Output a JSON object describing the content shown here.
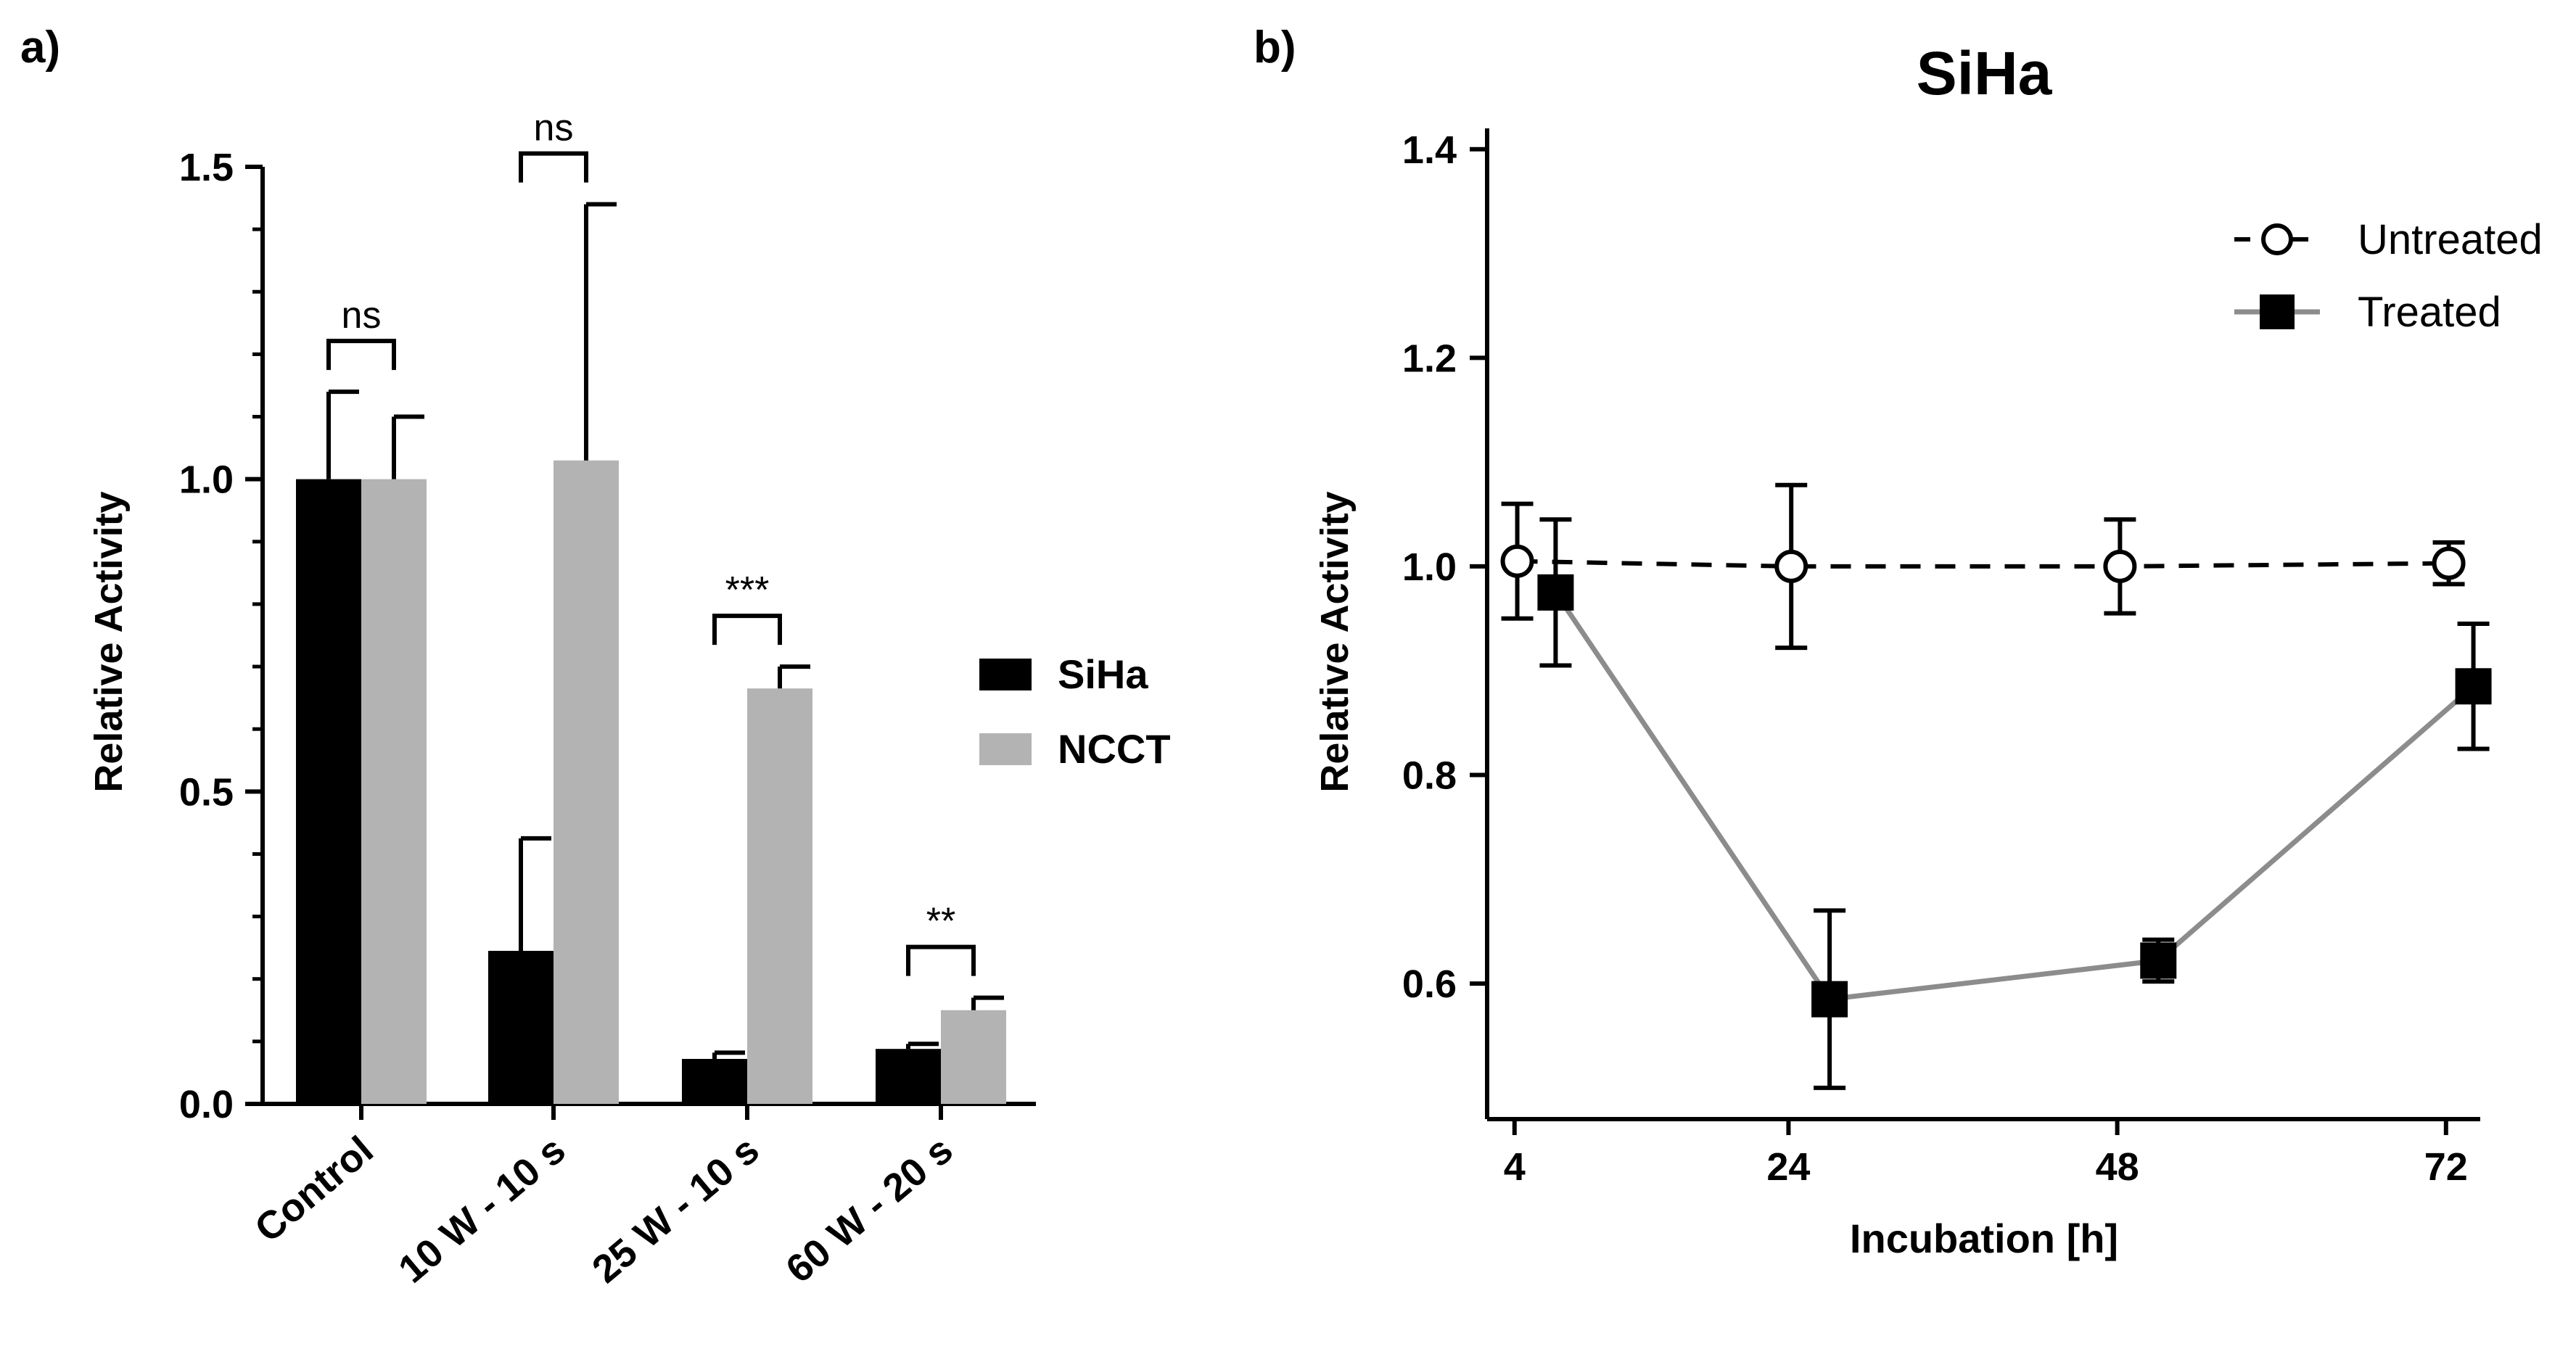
{
  "colors": {
    "siha": "#000000",
    "ncct": "#b3b3b3",
    "untreated_line": "#000000",
    "treated_line": "#8c8c8c",
    "axis": "#000000"
  },
  "chart_data": [
    {
      "panel": "a)",
      "type": "bar",
      "title": "",
      "xlabel": "",
      "ylabel": "Relative Activity",
      "ylim": [
        0,
        1.5
      ],
      "yticks": [
        0,
        0.5,
        1.0,
        1.5
      ],
      "ytick_labels": [
        "0.0",
        "0.5",
        "1.0",
        "1.5"
      ],
      "categories": [
        "Control",
        "10 W - 10 s",
        "25 W - 10 s",
        "60 W - 20 s"
      ],
      "series": [
        {
          "name": "SiHa",
          "color": "#000000",
          "values": [
            1.0,
            0.245,
            0.072,
            0.088
          ],
          "errors": [
            0.14,
            0.18,
            0.01,
            0.008
          ]
        },
        {
          "name": "NCCT",
          "color": "#b3b3b3",
          "values": [
            1.0,
            1.03,
            0.665,
            0.15
          ],
          "errors": [
            0.1,
            0.41,
            0.035,
            0.02
          ]
        }
      ],
      "significance": [
        "ns",
        "ns",
        "***",
        "**"
      ],
      "legend_position": "right"
    },
    {
      "panel": "b)",
      "type": "line",
      "title": "SiHa",
      "xlabel": "Incubation [h]",
      "ylabel": "Relative Activity",
      "xticks": [
        4,
        24,
        48,
        72
      ],
      "xlim": [
        2,
        74.5
      ],
      "ylim": [
        0.47,
        1.42
      ],
      "yticks": [
        0.6,
        0.8,
        1.0,
        1.2,
        1.4
      ],
      "ytick_labels": [
        "0.6",
        "0.8",
        "1.0",
        "1.2",
        "1.4"
      ],
      "series": [
        {
          "name": "Untreated",
          "style": "dashed",
          "marker": "open-circle",
          "x": [
            4.2,
            24.2,
            48.2,
            72.2
          ],
          "y": [
            1.005,
            1.0,
            1.0,
            1.003
          ],
          "err": [
            0.055,
            0.078,
            0.045,
            0.02
          ]
        },
        {
          "name": "Treated",
          "style": "solid",
          "marker": "filled-square",
          "x": [
            7.0,
            27.0,
            51.0,
            74.0
          ],
          "y": [
            0.975,
            0.585,
            0.622,
            0.885
          ],
          "err": [
            0.07,
            0.085,
            0.02,
            0.06
          ]
        }
      ],
      "legend_position": "top-right"
    }
  ]
}
